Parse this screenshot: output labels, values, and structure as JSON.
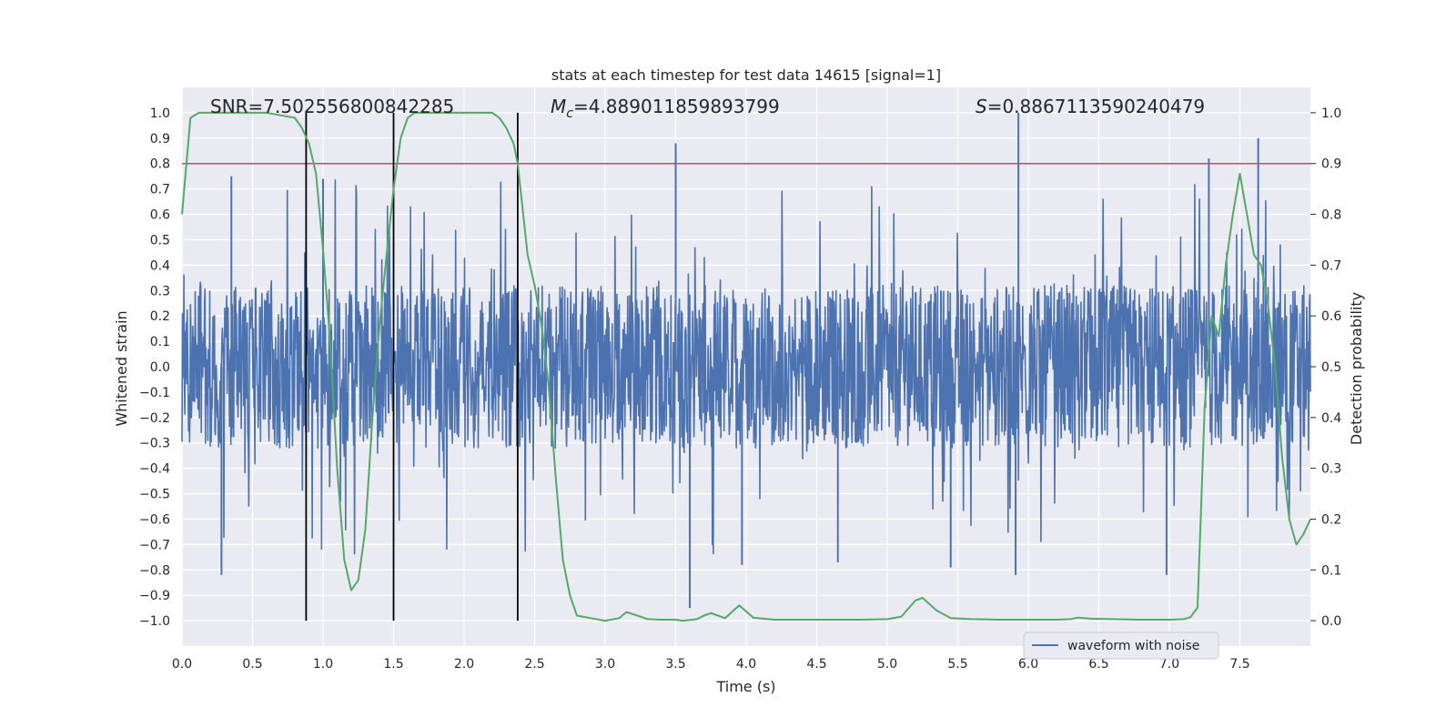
{
  "chart_data": {
    "type": "line",
    "title": "stats at each timestep for test data 14615 [signal=1]",
    "xlabel": "Time (s)",
    "ylabel": "Whitened strain",
    "ylabel_right": "Detection probability",
    "xlim": [
      0.0,
      8.0
    ],
    "ylim": [
      -1.1,
      1.1
    ],
    "ylim_right": [
      -0.05,
      1.05
    ],
    "x_ticks": [
      "0.0",
      "0.5",
      "1.0",
      "1.5",
      "2.0",
      "2.5",
      "3.0",
      "3.5",
      "4.0",
      "4.5",
      "5.0",
      "5.5",
      "6.0",
      "6.5",
      "7.0",
      "7.5"
    ],
    "y_ticks": [
      "1.0",
      "0.9",
      "0.8",
      "0.7",
      "0.6",
      "0.5",
      "0.4",
      "0.3",
      "0.2",
      "0.1",
      "0.0",
      "-0.1",
      "-0.2",
      "-0.3",
      "-0.4",
      "-0.5",
      "-0.6",
      "-0.7",
      "-0.8",
      "-0.9",
      "-1.0"
    ],
    "y_ticks_right": [
      "0.0",
      "0.1",
      "0.2",
      "0.3",
      "0.4",
      "0.5",
      "0.6",
      "0.7",
      "0.8",
      "0.9",
      "1.0"
    ],
    "grid": true,
    "legend": {
      "placement": "lower-center-right",
      "entries": [
        "waveform with noise"
      ]
    },
    "annotations": {
      "snr": "SNR=7.502556800842285",
      "mc": "=4.889011859893799",
      "mc_symbol": "M",
      "mc_sub": "c",
      "s": "=0.8867113590240479",
      "s_symbol": "S"
    },
    "threshold": {
      "y_right": 0.9,
      "color": "#c44e52"
    },
    "vlines_x": [
      0.88,
      1.5,
      2.38
    ],
    "waveform": {
      "name": "waveform with noise",
      "color": "#4c72b0",
      "typical_amplitude": 0.32,
      "peaks": [
        {
          "x": 0.28,
          "y": -0.82
        },
        {
          "x": 0.35,
          "y": 0.75
        },
        {
          "x": 1.0,
          "y": 0.74
        },
        {
          "x": 3.5,
          "y": 0.88
        },
        {
          "x": 3.6,
          "y": -0.95
        },
        {
          "x": 3.97,
          "y": -0.78
        },
        {
          "x": 4.65,
          "y": -0.77
        },
        {
          "x": 5.45,
          "y": -0.79
        },
        {
          "x": 5.93,
          "y": 1.0
        },
        {
          "x": 5.91,
          "y": -0.82
        },
        {
          "x": 6.98,
          "y": -0.82
        },
        {
          "x": 7.28,
          "y": 0.82
        },
        {
          "x": 7.63,
          "y": 0.9
        }
      ]
    },
    "detection_probability": {
      "color": "#55a868",
      "x": [
        0.0,
        0.06,
        0.12,
        0.2,
        0.3,
        0.4,
        0.5,
        0.6,
        0.7,
        0.8,
        0.85,
        0.9,
        0.95,
        1.0,
        1.05,
        1.1,
        1.15,
        1.2,
        1.25,
        1.3,
        1.35,
        1.4,
        1.45,
        1.5,
        1.55,
        1.6,
        1.65,
        1.7,
        1.8,
        1.9,
        2.0,
        2.1,
        2.2,
        2.25,
        2.3,
        2.35,
        2.38,
        2.45,
        2.5,
        2.55,
        2.6,
        2.65,
        2.7,
        2.75,
        2.8,
        2.9,
        3.0,
        3.1,
        3.15,
        3.25,
        3.3,
        3.4,
        3.5,
        3.55,
        3.65,
        3.7,
        3.75,
        3.85,
        3.95,
        4.05,
        4.2,
        4.4,
        4.6,
        4.8,
        5.0,
        5.1,
        5.2,
        5.25,
        5.35,
        5.45,
        5.6,
        5.8,
        6.0,
        6.2,
        6.3,
        6.35,
        6.45,
        6.6,
        6.8,
        7.0,
        7.1,
        7.15,
        7.2,
        7.25,
        7.3,
        7.35,
        7.4,
        7.45,
        7.5,
        7.55,
        7.6,
        7.65,
        7.7,
        7.75,
        7.8,
        7.85,
        7.9,
        7.95,
        8.0
      ],
      "y": [
        0.8,
        0.99,
        1.0,
        1.0,
        1.0,
        1.0,
        1.0,
        1.0,
        0.995,
        0.99,
        0.97,
        0.94,
        0.88,
        0.73,
        0.55,
        0.3,
        0.12,
        0.06,
        0.08,
        0.18,
        0.4,
        0.58,
        0.72,
        0.85,
        0.95,
        0.99,
        1.0,
        1.0,
        1.0,
        1.0,
        1.0,
        1.0,
        1.0,
        0.99,
        0.97,
        0.94,
        0.9,
        0.72,
        0.66,
        0.58,
        0.46,
        0.28,
        0.12,
        0.05,
        0.01,
        0.005,
        0.0,
        0.005,
        0.017,
        0.008,
        0.003,
        0.002,
        0.002,
        0.0,
        0.003,
        0.01,
        0.015,
        0.005,
        0.03,
        0.006,
        0.002,
        0.002,
        0.002,
        0.002,
        0.003,
        0.008,
        0.04,
        0.045,
        0.02,
        0.005,
        0.003,
        0.002,
        0.002,
        0.002,
        0.003,
        0.006,
        0.004,
        0.003,
        0.002,
        0.002,
        0.003,
        0.007,
        0.026,
        0.42,
        0.6,
        0.56,
        0.7,
        0.8,
        0.88,
        0.8,
        0.72,
        0.7,
        0.62,
        0.5,
        0.32,
        0.2,
        0.15,
        0.17,
        0.2
      ]
    }
  }
}
